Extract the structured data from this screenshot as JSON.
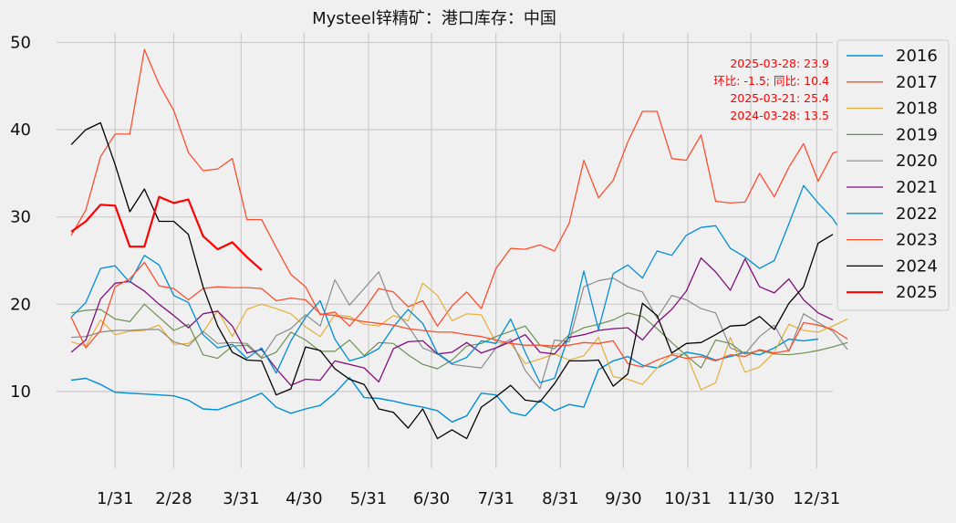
{
  "chart_data": {
    "type": "line",
    "title": "Mysteel锌精矿：港口库存：中国",
    "xlabel": "",
    "ylabel": "",
    "x_ticks": [
      "1/31",
      "2/28",
      "3/31",
      "4/30",
      "5/31",
      "6/30",
      "7/31",
      "8/31",
      "9/30",
      "10/31",
      "11/30",
      "12/31"
    ],
    "x_tick_weeks": [
      4,
      8,
      12.6,
      16.9,
      21.3,
      25.6,
      30,
      34.4,
      38.7,
      43.1,
      47.4,
      51.9
    ],
    "y_ticks": [
      10,
      20,
      30,
      40,
      50
    ],
    "xlim": [
      0,
      53
    ],
    "ylim": [
      1.2,
      51.1
    ],
    "grid": true,
    "legend_position": "outside-right",
    "annotations": [
      "2025-03-28: 23.9",
      "环比: -1.5; 同比: 10.4",
      "2025-03-21: 25.4",
      "2024-03-28: 13.5"
    ],
    "annotation_color": "#ff0000",
    "series": [
      {
        "name": "2016",
        "color": "#008fd5",
        "width": 1.4,
        "values": [
          11.3,
          11.5,
          10.8,
          9.9,
          9.8,
          9.7,
          9.6,
          9.5,
          9.0,
          8.0,
          7.9,
          8.5,
          9.1,
          9.8,
          8.2,
          7.5,
          8.0,
          8.4,
          9.8,
          11.6,
          9.3,
          9.2,
          8.9,
          8.5,
          8.2,
          7.8,
          6.5,
          7.2,
          9.8,
          9.6,
          7.6,
          7.2,
          9.0,
          7.8,
          8.5,
          8.2,
          12.5,
          13.5,
          14.0,
          13.0,
          12.7,
          13.5,
          14.5,
          14.2,
          13.6,
          14.0,
          14.5,
          14.2,
          15.0,
          16.0,
          15.8,
          16.0
        ]
      },
      {
        "name": "2017",
        "color": "#fc4f30",
        "width": 1.3,
        "values": [
          27.9,
          30.8,
          36.9,
          39.5,
          39.5,
          49.2,
          45.2,
          42.2,
          37.4,
          35.3,
          35.5,
          36.7,
          29.7,
          29.7,
          26.5,
          23.4,
          22.0,
          18.8,
          19.1,
          17.5,
          19.4,
          21.8,
          21.4,
          19.7,
          20.4,
          17.5,
          19.8,
          21.4,
          19.5,
          24.1,
          26.4,
          26.3,
          26.8,
          26.1,
          29.3,
          36.5,
          32.2,
          34.2,
          38.6,
          42.1,
          42.1,
          36.7,
          36.5,
          39.4,
          31.8,
          31.6,
          31.7,
          35.0,
          32.3,
          35.7,
          38.4,
          34.1,
          37.3,
          37.9
        ]
      },
      {
        "name": "2018",
        "color": "#e5ae38",
        "width": 1.2,
        "values": [
          15.7,
          15.2,
          18.2,
          16.5,
          16.9,
          17.0,
          17.6,
          15.4,
          15.5,
          16.8,
          19.3,
          16.3,
          19.4,
          20.0,
          19.5,
          18.9,
          17.4,
          16.3,
          18.8,
          18.6,
          17.7,
          17.5,
          18.7,
          18.1,
          22.4,
          21.0,
          18.1,
          18.9,
          18.8,
          15.6,
          15.5,
          13.2,
          13.7,
          14.3,
          13.6,
          14.1,
          16.2,
          11.7,
          11.4,
          10.8,
          12.7,
          14.3,
          14.3,
          10.2,
          11.0,
          16.2,
          12.2,
          12.8,
          14.5,
          17.7,
          17.0,
          16.8,
          17.5,
          18.3
        ]
      },
      {
        "name": "2019",
        "color": "#6d904f",
        "width": 1.2,
        "values": [
          19.0,
          19.3,
          19.4,
          18.3,
          18.0,
          20.0,
          18.5,
          17.0,
          17.7,
          14.2,
          13.8,
          15.2,
          15.3,
          13.8,
          14.5,
          16.8,
          15.9,
          14.6,
          14.6,
          15.9,
          14.1,
          15.6,
          15.5,
          14.2,
          13.1,
          12.6,
          13.6,
          15.2,
          15.5,
          16.3,
          16.9,
          17.5,
          15.3,
          14.9,
          16.5,
          17.3,
          17.7,
          18.2,
          19.0,
          18.6,
          17.2,
          15.6,
          14.1,
          12.7,
          15.9,
          15.5,
          14.3,
          14.7,
          14.3,
          14.2,
          14.4,
          14.7,
          15.1,
          15.6
        ]
      },
      {
        "name": "2020",
        "color": "#8b8b8b",
        "width": 1.2,
        "values": [
          16.2,
          16.3,
          16.8,
          17.0,
          17.0,
          17.1,
          17.1,
          15.7,
          15.2,
          16.9,
          15.5,
          15.6,
          15.5,
          13.9,
          16.4,
          17.2,
          18.8,
          17.5,
          22.8,
          19.9,
          21.8,
          23.7,
          19.4,
          17.5,
          15.0,
          14.3,
          13.1,
          12.9,
          12.7,
          15.0,
          16.0,
          12.4,
          10.3,
          15.9,
          15.7,
          22.0,
          22.7,
          23.0,
          22.0,
          21.4,
          18.4,
          21.0,
          20.5,
          19.5,
          19.0,
          15.0,
          14.3,
          16.3,
          17.6,
          14.6,
          18.9,
          17.9,
          16.9,
          14.8
        ]
      },
      {
        "name": "2021",
        "color": "#810f7c",
        "width": 1.3,
        "values": [
          14.5,
          15.9,
          20.6,
          22.4,
          22.6,
          21.5,
          20.0,
          18.7,
          17.3,
          18.9,
          19.2,
          17.5,
          14.4,
          14.8,
          12.6,
          10.7,
          11.4,
          11.3,
          13.5,
          13.1,
          12.7,
          11.1,
          14.9,
          15.7,
          15.8,
          14.3,
          14.5,
          15.6,
          14.4,
          15.0,
          15.7,
          16.5,
          14.5,
          14.3,
          16.2,
          16.5,
          17.0,
          17.2,
          17.3,
          15.9,
          17.9,
          19.4,
          21.5,
          25.3,
          23.7,
          21.6,
          25.2,
          22.0,
          21.3,
          22.9,
          20.5,
          19.0,
          18.2
        ]
      },
      {
        "name": "2022",
        "color": "#008fd5",
        "width": 1.3,
        "values": [
          18.5,
          20.2,
          24.1,
          24.4,
          22.5,
          25.6,
          24.5,
          21.0,
          20.2,
          16.5,
          15.0,
          15.4,
          13.8,
          15.0,
          12.1,
          15.8,
          18.5,
          20.4,
          16.0,
          13.5,
          14.0,
          14.9,
          17.4,
          19.4,
          17.8,
          14.4,
          13.2,
          13.9,
          15.8,
          15.5,
          18.3,
          14.5,
          11.0,
          11.5,
          16.6,
          23.8,
          17.1,
          23.5,
          24.5,
          23.0,
          26.1,
          25.6,
          27.9,
          28.8,
          29.0,
          26.4,
          25.4,
          24.1,
          25.0,
          29.2,
          33.6,
          31.6,
          29.8,
          27.2
        ]
      },
      {
        "name": "2023",
        "color": "#fc4f30",
        "width": 1.3,
        "values": [
          18.5,
          15.0,
          17.0,
          22.0,
          22.9,
          24.8,
          22.1,
          21.8,
          20.5,
          21.8,
          22.0,
          21.9,
          21.9,
          21.8,
          20.4,
          20.7,
          20.5,
          18.9,
          18.7,
          18.3,
          18.0,
          17.8,
          17.6,
          17.2,
          17.0,
          16.8,
          16.8,
          16.5,
          16.3,
          15.9,
          15.5,
          15.3,
          15.3,
          15.2,
          15.3,
          15.6,
          15.5,
          15.8,
          13.2,
          12.8,
          13.6,
          14.2,
          13.8,
          14.0,
          13.5,
          14.2,
          14.0,
          14.8,
          14.4,
          14.7,
          17.9,
          17.6,
          17.1,
          16.0
        ]
      },
      {
        "name": "2024",
        "color": "#000000",
        "width": 1.3,
        "values": [
          38.3,
          40.0,
          40.8,
          36.0,
          30.6,
          33.2,
          29.5,
          29.5,
          28.0,
          22.0,
          17.5,
          14.5,
          13.6,
          13.5,
          9.6,
          10.3,
          15.1,
          14.7,
          12.6,
          11.4,
          10.8,
          8.0,
          7.6,
          5.8,
          8.0,
          4.6,
          5.6,
          4.6,
          8.2,
          9.4,
          10.7,
          9.0,
          8.8,
          10.9,
          13.5,
          13.5,
          13.6,
          10.6,
          12.0,
          20.1,
          18.7,
          14.4,
          15.5,
          15.6,
          16.5,
          17.5,
          17.6,
          18.6,
          17.1,
          20.1,
          22.0,
          27.0,
          28.0
        ]
      },
      {
        "name": "2025",
        "color": "#ff0000",
        "width": 2.2,
        "values": [
          28.3,
          29.5,
          31.4,
          31.3,
          26.6,
          26.6,
          32.3,
          31.6,
          32.0,
          27.8,
          26.3,
          27.1,
          25.4,
          23.9
        ]
      }
    ]
  }
}
